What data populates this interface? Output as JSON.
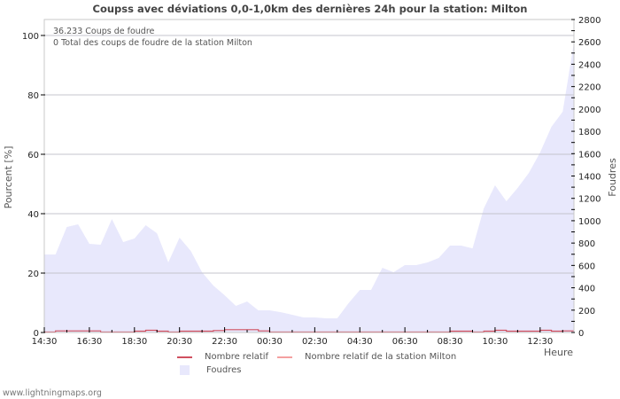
{
  "chart_data": {
    "type": "area",
    "title": "Coupss avec déviations 0,0-1,0km des dernières 24h pour la station: Milton",
    "xlabel": "Heure",
    "ylabel_left": "Pourcent   [%]",
    "ylabel_right": "Foudres",
    "ylim_left": [
      0,
      100
    ],
    "ylim_right": [
      0,
      2800
    ],
    "yticks_left": [
      0,
      20,
      40,
      60,
      80,
      100
    ],
    "yticks_right": [
      0,
      200,
      400,
      600,
      800,
      1000,
      1200,
      1400,
      1600,
      1800,
      2000,
      2200,
      2400,
      2600,
      2800
    ],
    "xticks": [
      "14:30",
      "16:30",
      "18:30",
      "20:30",
      "22:30",
      "00:30",
      "02:30",
      "04:30",
      "06:30",
      "08:30",
      "10:30",
      "12:30"
    ],
    "grid": true,
    "legend_position": "bottom",
    "series": [
      {
        "name": "Foudres",
        "axis": "right",
        "color": "#e8e8fc",
        "values": [
          698,
          698,
          944,
          968,
          793,
          785,
          1015,
          809,
          841,
          960,
          888,
          627,
          849,
          730,
          539,
          420,
          333,
          238,
          278,
          198,
          198,
          182,
          159,
          135,
          135,
          127,
          127,
          262,
          381,
          381,
          579,
          539,
          603,
          603,
          627,
          666,
          777,
          777,
          753,
          1110,
          1317,
          1174,
          1293,
          1428,
          1610,
          1840,
          1975,
          2593
        ]
      },
      {
        "name": "Nombre relatif",
        "axis": "left",
        "color": "#d05060",
        "values": [
          0,
          0.4,
          0.4,
          0.4,
          0.4,
          0,
          0,
          0,
          0.3,
          0.6,
          0.3,
          0,
          0.3,
          0.3,
          0.3,
          0.5,
          0.8,
          0.8,
          0.8,
          0.4,
          0,
          0,
          0,
          0,
          0,
          0,
          0,
          0,
          0,
          0,
          0,
          0,
          0,
          0,
          0,
          0,
          0.3,
          0.3,
          0,
          0.3,
          0.6,
          0.3,
          0.3,
          0.3,
          0.6,
          0.3,
          0.4,
          0.4
        ]
      },
      {
        "name": "Nombre relatif de la station Milton",
        "axis": "left",
        "color": "#f4a0a0",
        "values": []
      }
    ]
  },
  "header": {
    "title": "Coupss avec déviations 0,0-1,0km des dernières 24h pour la station: Milton"
  },
  "info": {
    "line1": "36.233  Coups de foudre",
    "line2": "0 Total des coups de foudre de la station Milton"
  },
  "legend": {
    "relatif": "Nombre relatif",
    "relatif_station": "Nombre relatif de la station Milton",
    "foudres": "Foudres"
  },
  "axes": {
    "left_title": "Pourcent   [%]",
    "right_title": "Foudres",
    "x_title": "Heure"
  },
  "footer": {
    "site": "www.lightningmaps.org"
  }
}
